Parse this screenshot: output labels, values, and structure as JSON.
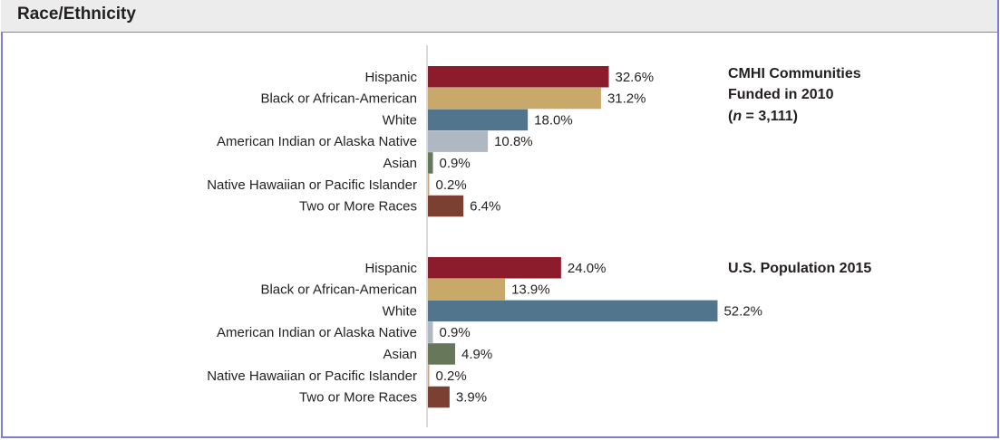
{
  "header": {
    "title": "Race/Ethnicity"
  },
  "colors": {
    "Hispanic": "#8c1c2c",
    "Black or African-American": "#c9a96a",
    "White": "#52758e",
    "American Indian or Alaska Native": "#aeb7c2",
    "Asian": "#66775a",
    "Native Hawaiian or Pacific Islander": "#cfa07a",
    "Two or More Races": "#7b4031"
  },
  "chart_data": {
    "type": "bar",
    "orientation": "horizontal",
    "categories": [
      "Hispanic",
      "Black or African-American",
      "White",
      "American Indian or Alaska Native",
      "Asian",
      "Native Hawaiian or Pacific Islander",
      "Two or More Races"
    ],
    "series": [
      {
        "title_lines": [
          "CMHI Communities",
          "Funded in 2010",
          "(n = 3,111)"
        ],
        "values": [
          32.6,
          31.2,
          18.0,
          10.8,
          0.9,
          0.2,
          6.4
        ],
        "labels": [
          "32.6%",
          "31.2%",
          "18.0%",
          "10.8%",
          "0.9%",
          "0.2%",
          "6.4%"
        ]
      },
      {
        "title_lines": [
          "U.S. Population 2015"
        ],
        "values": [
          24.0,
          13.9,
          52.2,
          0.9,
          4.9,
          0.2,
          3.9
        ],
        "labels": [
          "24.0%",
          "13.9%",
          "52.2%",
          "0.9%",
          "4.9%",
          "0.2%",
          "3.9%"
        ]
      }
    ]
  }
}
